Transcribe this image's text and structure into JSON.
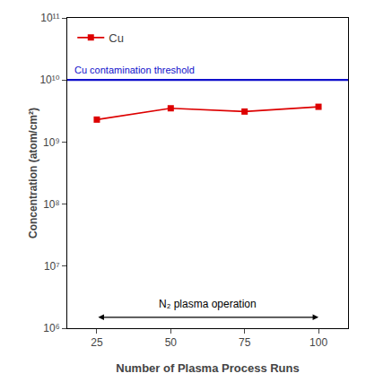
{
  "chart_data": {
    "type": "line",
    "x": [
      25,
      50,
      75,
      100
    ],
    "series": [
      {
        "name": "Cu",
        "color": "#dd0000",
        "marker": "square",
        "line_style": "solid",
        "values": [
          2300000000.0,
          3500000000.0,
          3100000000.0,
          3700000000.0
        ]
      }
    ],
    "xlabel": "Number of Plasma Process Runs",
    "ylabel": "Concentration (atom/cm²)",
    "xlim": [
      15,
      110
    ],
    "xticks": [
      25,
      50,
      75,
      100
    ],
    "ylim": [
      1000000.0,
      100000000000.0
    ],
    "yticks": [
      {
        "value": 1000000.0,
        "label": "10⁶"
      },
      {
        "value": 10000000.0,
        "label": "10⁷"
      },
      {
        "value": 100000000.0,
        "label": "10⁸"
      },
      {
        "value": 1000000000.0,
        "label": "10⁹"
      },
      {
        "value": 10000000000.0,
        "label": "10¹⁰"
      },
      {
        "value": 100000000000.0,
        "label": "10¹¹"
      }
    ],
    "log": "y",
    "grid": false,
    "legend": "upper left",
    "threshold": {
      "value": 10000000000.0,
      "color": "#1010cc",
      "label": "Cu contamination threshold"
    },
    "annotations": [
      {
        "text": "N₂ plasma operation",
        "x_start": 25,
        "x_end": 100,
        "y": 1500000.0
      }
    ]
  }
}
